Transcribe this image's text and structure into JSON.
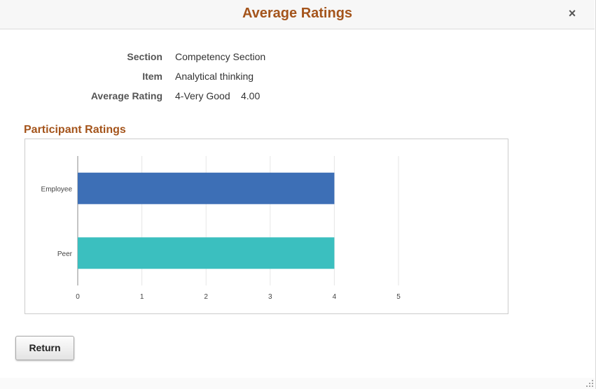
{
  "header": {
    "title": "Average Ratings",
    "close_glyph": "×"
  },
  "fields": [
    {
      "label": "Section",
      "value": "Competency Section"
    },
    {
      "label": "Item",
      "value": "Analytical thinking"
    },
    {
      "label": "Average Rating",
      "value": "4-Very Good",
      "value2": "4.00"
    }
  ],
  "chart_section": {
    "title": "Participant Ratings"
  },
  "chart_data": {
    "type": "bar",
    "orientation": "horizontal",
    "categories": [
      "Employee",
      "Peer"
    ],
    "values": [
      4,
      4
    ],
    "colors": [
      "#3d6fb6",
      "#3bbfbf"
    ],
    "xlim": [
      0,
      5
    ],
    "xticks": [
      "0",
      "1",
      "2",
      "3",
      "4",
      "5"
    ],
    "grid": true
  },
  "buttons": {
    "return_label": "Return"
  }
}
